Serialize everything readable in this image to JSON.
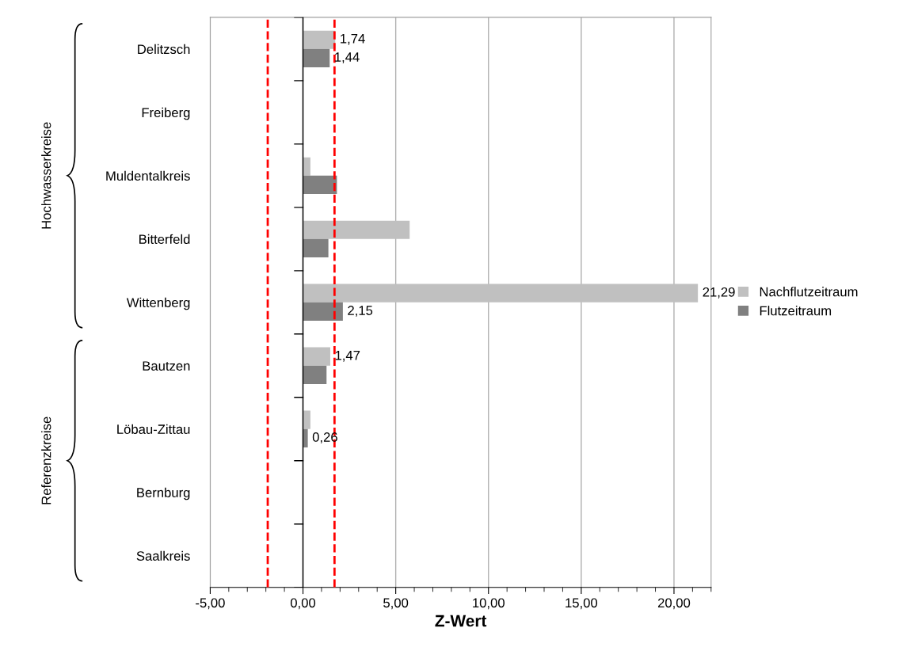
{
  "chart_data": {
    "type": "bar",
    "orientation": "horizontal",
    "categories": [
      "Delitzsch",
      "Freiberg",
      "Muldentalkreis",
      "Bitterfeld",
      "Wittenberg",
      "Bautzen",
      "Löbau-Zittau",
      "Bernburg",
      "Saalkreis"
    ],
    "series": [
      {
        "name": "Nachflutzeitraum",
        "color": "#c0c0c0",
        "values": [
          1.74,
          null,
          0.4,
          5.75,
          21.29,
          1.47,
          0.4,
          null,
          null
        ],
        "value_labels": [
          "1,74",
          null,
          null,
          null,
          "21,29",
          "1,47",
          null,
          null,
          null
        ]
      },
      {
        "name": "Flutzeitraum",
        "color": "#808080",
        "values": [
          1.44,
          null,
          1.83,
          1.37,
          2.15,
          1.27,
          0.26,
          null,
          null
        ],
        "value_labels": [
          "1,44",
          null,
          null,
          null,
          "2,15",
          null,
          "0,26",
          null,
          null
        ]
      }
    ],
    "xlabel": "Z-Wert",
    "xlim": [
      -5,
      22
    ],
    "xticks": [
      {
        "value": -5,
        "label": "-5,00"
      },
      {
        "value": 0,
        "label": "0,00"
      },
      {
        "value": 5,
        "label": "5,00"
      },
      {
        "value": 10,
        "label": "10,00"
      },
      {
        "value": 15,
        "label": "15,00"
      },
      {
        "value": 20,
        "label": "20,00"
      }
    ],
    "grid": "x",
    "legend": "right",
    "ref_lines": [
      {
        "axis": "x",
        "value": -1.9,
        "color": "#ff0000",
        "line_style": "dashed"
      },
      {
        "axis": "x",
        "value": 1.7,
        "color": "#ff0000",
        "line_style": "dashed"
      }
    ],
    "annotations": [
      "Hochwasserkreise",
      "Referenzkreise"
    ]
  }
}
